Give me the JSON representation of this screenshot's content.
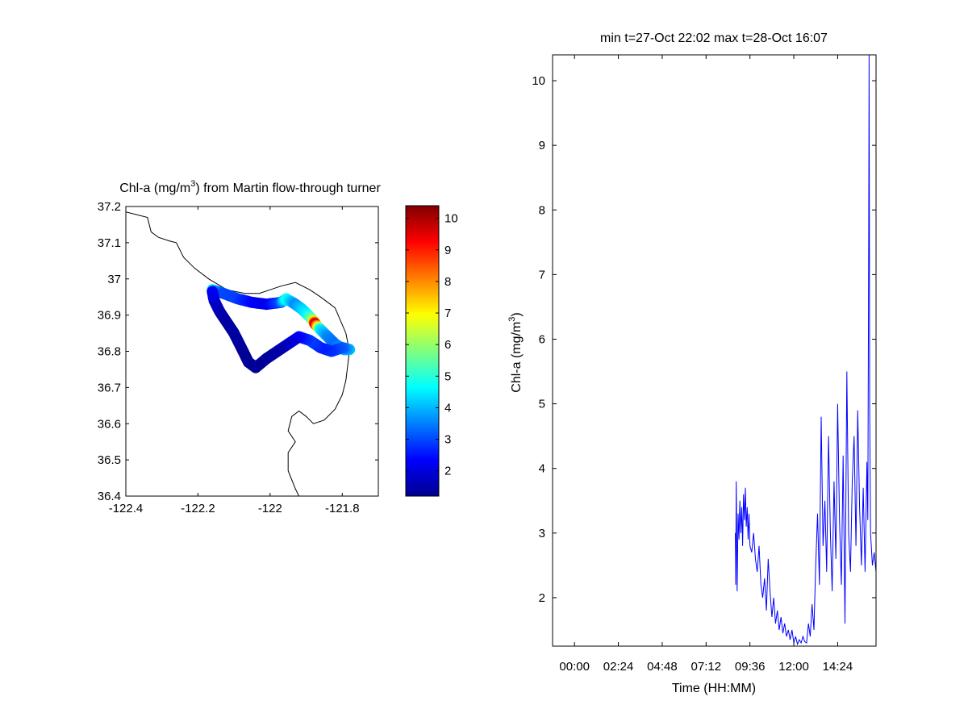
{
  "chart_data": [
    {
      "type": "scatter",
      "title_main": "Chl-a (mg/m",
      "title_sup": "3",
      "title_rest": ") from Martin flow-through turner",
      "xlim": [
        -122.4,
        -121.7
      ],
      "ylim": [
        36.4,
        37.2
      ],
      "xticks": [
        -122.4,
        -122.2,
        -122,
        -121.8
      ],
      "xtick_labels": [
        "-122.4",
        "-122.2",
        "-122",
        "-121.8"
      ],
      "yticks": [
        36.4,
        36.5,
        36.6,
        36.7,
        36.8,
        36.9,
        37,
        37.1,
        37.2
      ],
      "ytick_labels": [
        "36.4",
        "36.5",
        "36.6",
        "36.7",
        "36.8",
        "36.9",
        "37",
        "37.1",
        "37.2"
      ],
      "coastline": [
        [
          -122.4,
          37.185
        ],
        [
          -122.34,
          37.17
        ],
        [
          -122.33,
          37.13
        ],
        [
          -122.31,
          37.115
        ],
        [
          -122.28,
          37.105
        ],
        [
          -122.26,
          37.1
        ],
        [
          -122.24,
          37.06
        ],
        [
          -122.21,
          37.03
        ],
        [
          -122.17,
          37.0
        ],
        [
          -122.12,
          36.97
        ],
        [
          -122.07,
          36.96
        ],
        [
          -122.03,
          36.96
        ],
        [
          -122.0,
          36.97
        ],
        [
          -121.97,
          36.98
        ],
        [
          -121.93,
          36.99
        ],
        [
          -121.89,
          36.97
        ],
        [
          -121.86,
          36.95
        ],
        [
          -121.82,
          36.92
        ],
        [
          -121.79,
          36.85
        ],
        [
          -121.78,
          36.8
        ],
        [
          -121.79,
          36.72
        ],
        [
          -121.8,
          36.68
        ],
        [
          -121.82,
          36.64
        ],
        [
          -121.85,
          36.61
        ],
        [
          -121.88,
          36.6
        ],
        [
          -121.9,
          36.62
        ],
        [
          -121.92,
          36.635
        ],
        [
          -121.94,
          36.62
        ],
        [
          -121.95,
          36.58
        ],
        [
          -121.93,
          36.55
        ],
        [
          -121.95,
          36.52
        ],
        [
          -121.95,
          36.47
        ],
        [
          -121.93,
          36.42
        ],
        [
          -121.92,
          36.4
        ]
      ],
      "track": [
        {
          "lon": -122.16,
          "lat": 36.97,
          "v": 4.3
        },
        {
          "lon": -122.13,
          "lat": 36.96,
          "v": 3.0
        },
        {
          "lon": -122.09,
          "lat": 36.945,
          "v": 2.9
        },
        {
          "lon": -122.05,
          "lat": 36.935,
          "v": 2.4
        },
        {
          "lon": -122.01,
          "lat": 36.93,
          "v": 2.1
        },
        {
          "lon": -121.97,
          "lat": 36.935,
          "v": 3.1
        },
        {
          "lon": -121.955,
          "lat": 36.945,
          "v": 4.8
        },
        {
          "lon": -121.93,
          "lat": 36.93,
          "v": 3.6
        },
        {
          "lon": -121.91,
          "lat": 36.915,
          "v": 4.2
        },
        {
          "lon": -121.895,
          "lat": 36.9,
          "v": 4.6
        },
        {
          "lon": -121.88,
          "lat": 36.885,
          "v": 6.0
        },
        {
          "lon": -121.875,
          "lat": 36.875,
          "v": 9.8
        },
        {
          "lon": -121.86,
          "lat": 36.86,
          "v": 4.5
        },
        {
          "lon": -121.84,
          "lat": 36.84,
          "v": 3.6
        },
        {
          "lon": -121.82,
          "lat": 36.82,
          "v": 3.3
        },
        {
          "lon": -121.795,
          "lat": 36.805,
          "v": 3.8
        },
        {
          "lon": -121.78,
          "lat": 36.805,
          "v": 4.1
        },
        {
          "lon": -121.8,
          "lat": 36.81,
          "v": 3.2
        },
        {
          "lon": -121.83,
          "lat": 36.8,
          "v": 2.8
        },
        {
          "lon": -121.86,
          "lat": 36.81,
          "v": 2.6
        },
        {
          "lon": -121.89,
          "lat": 36.83,
          "v": 2.9
        },
        {
          "lon": -121.92,
          "lat": 36.84,
          "v": 2.4
        },
        {
          "lon": -121.95,
          "lat": 36.82,
          "v": 1.9
        },
        {
          "lon": -121.98,
          "lat": 36.8,
          "v": 1.6
        },
        {
          "lon": -122.01,
          "lat": 36.78,
          "v": 1.5
        },
        {
          "lon": -122.04,
          "lat": 36.755,
          "v": 1.4
        },
        {
          "lon": -122.06,
          "lat": 36.77,
          "v": 1.4
        },
        {
          "lon": -122.08,
          "lat": 36.81,
          "v": 1.4
        },
        {
          "lon": -122.1,
          "lat": 36.85,
          "v": 1.5
        },
        {
          "lon": -122.12,
          "lat": 36.88,
          "v": 1.5
        },
        {
          "lon": -122.14,
          "lat": 36.91,
          "v": 1.6
        },
        {
          "lon": -122.155,
          "lat": 36.94,
          "v": 1.8
        },
        {
          "lon": -122.16,
          "lat": 36.965,
          "v": 2.2
        }
      ],
      "colorbar": {
        "clim": [
          1.2,
          10.4
        ],
        "ticks": [
          2,
          3,
          4,
          5,
          6,
          7,
          8,
          9,
          10
        ],
        "tick_labels": [
          "2",
          "3",
          "4",
          "5",
          "6",
          "7",
          "8",
          "9",
          "10"
        ]
      }
    },
    {
      "type": "line",
      "title": "min t=27-Oct 22:02 max t=28-Oct 16:07",
      "xlabel": "Time (HH:MM)",
      "ylabel_main": "Chl-a (mg/m",
      "ylabel_sup": "3",
      "ylabel_rest": ")",
      "xlim": [
        -1.2,
        16.5
      ],
      "ylim": [
        1.25,
        10.4
      ],
      "xticks": [
        0,
        2.4,
        4.8,
        7.2,
        9.6,
        12,
        14.4
      ],
      "xtick_labels": [
        "00:00",
        "02:24",
        "04:48",
        "07:12",
        "09:36",
        "12:00",
        "14:24"
      ],
      "yticks": [
        2,
        3,
        4,
        5,
        6,
        7,
        8,
        9,
        10
      ],
      "ytick_labels": [
        "2",
        "3",
        "4",
        "5",
        "6",
        "7",
        "8",
        "9",
        "10"
      ],
      "series": [
        {
          "color": "#0000ff",
          "x": [
            8.8,
            8.82,
            8.85,
            8.9,
            8.95,
            9.0,
            9.05,
            9.1,
            9.15,
            9.2,
            9.25,
            9.3,
            9.35,
            9.4,
            9.45,
            9.5,
            9.55,
            9.6,
            9.7,
            9.8,
            9.9,
            10.0,
            10.1,
            10.2,
            10.3,
            10.4,
            10.5,
            10.6,
            10.7,
            10.8,
            10.9,
            11.0,
            11.1,
            11.2,
            11.3,
            11.4,
            11.5,
            11.6,
            11.7,
            11.8,
            11.9,
            12.0,
            12.1,
            12.2,
            12.3,
            12.4,
            12.5,
            12.6,
            12.7,
            12.8,
            12.9,
            13.0,
            13.1,
            13.2,
            13.3,
            13.4,
            13.5,
            13.6,
            13.7,
            13.8,
            13.9,
            14.0,
            14.1,
            14.2,
            14.3,
            14.4,
            14.5,
            14.6,
            14.7,
            14.8,
            14.9,
            15.0,
            15.1,
            15.2,
            15.3,
            15.4,
            15.5,
            15.6,
            15.7,
            15.8,
            15.9,
            16.0,
            16.05,
            16.1,
            16.12,
            16.15,
            16.2,
            16.3,
            16.4,
            16.5
          ],
          "y": [
            3.0,
            2.2,
            3.8,
            2.1,
            3.3,
            2.9,
            3.5,
            3.0,
            3.4,
            2.8,
            3.6,
            3.2,
            3.7,
            3.1,
            3.4,
            2.9,
            3.3,
            2.8,
            2.7,
            3.0,
            2.6,
            2.4,
            2.8,
            2.2,
            2.0,
            2.3,
            1.8,
            2.6,
            2.1,
            1.7,
            2.0,
            1.6,
            1.8,
            1.5,
            1.7,
            1.45,
            1.6,
            1.4,
            1.5,
            1.35,
            1.5,
            1.3,
            1.4,
            1.28,
            1.35,
            1.3,
            1.4,
            1.32,
            1.3,
            1.6,
            1.4,
            1.9,
            1.5,
            2.5,
            3.3,
            2.2,
            4.8,
            2.8,
            3.5,
            2.4,
            4.5,
            3.0,
            2.1,
            3.8,
            2.6,
            5.0,
            3.2,
            2.2,
            4.2,
            1.6,
            5.5,
            3.0,
            2.4,
            3.8,
            4.5,
            2.8,
            4.9,
            3.4,
            2.5,
            3.7,
            2.4,
            4.1,
            3.2,
            7.6,
            10.4,
            5.0,
            3.0,
            2.5,
            2.7,
            2.4
          ]
        }
      ]
    }
  ]
}
